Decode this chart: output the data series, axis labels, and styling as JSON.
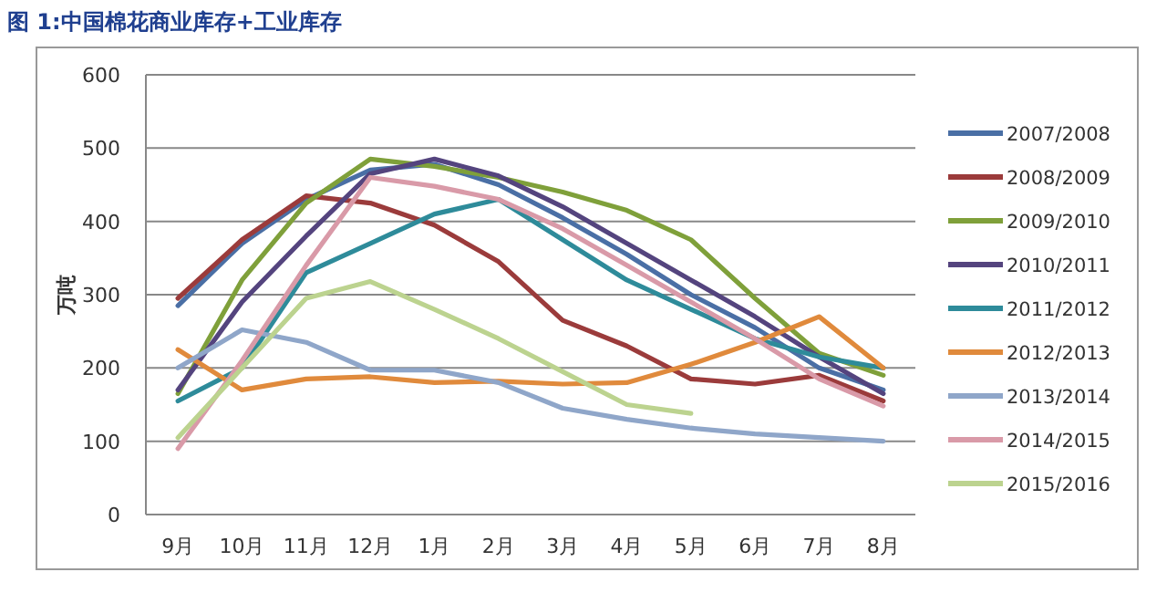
{
  "chart_data": {
    "type": "line",
    "title": "图 1:中国棉花商业库存+工业库存",
    "ylabel": "万吨",
    "categories": [
      "9月",
      "10月",
      "11月",
      "12月",
      "1月",
      "2月",
      "3月",
      "4月",
      "5月",
      "6月",
      "7月",
      "8月"
    ],
    "ylim": [
      0,
      600
    ],
    "yticks": [
      0,
      100,
      200,
      300,
      400,
      500,
      600
    ],
    "grid": "y",
    "legend": "right",
    "marker": "none",
    "line_style": "solid",
    "series": [
      {
        "name": "2007/2008",
        "color": "#4a6fa5",
        "values": [
          285,
          370,
          430,
          470,
          478,
          450,
          405,
          355,
          300,
          255,
          200,
          170
        ]
      },
      {
        "name": "2008/2009",
        "color": "#9b3b3b",
        "values": [
          295,
          375,
          435,
          425,
          395,
          345,
          265,
          230,
          185,
          178,
          190,
          155
        ]
      },
      {
        "name": "2009/2010",
        "color": "#7fa03a",
        "values": [
          165,
          320,
          425,
          485,
          475,
          460,
          440,
          415,
          375,
          295,
          220,
          190
        ]
      },
      {
        "name": "2010/2011",
        "color": "#54447e",
        "values": [
          170,
          290,
          380,
          465,
          485,
          462,
          420,
          370,
          320,
          270,
          215,
          165
        ]
      },
      {
        "name": "2011/2012",
        "color": "#2e8b9a",
        "values": [
          155,
          200,
          330,
          370,
          410,
          430,
          375,
          320,
          280,
          240,
          215,
          200
        ]
      },
      {
        "name": "2012/2013",
        "color": "#e08a3c",
        "values": [
          225,
          170,
          185,
          188,
          180,
          182,
          178,
          180,
          205,
          235,
          270,
          200
        ]
      },
      {
        "name": "2013/2014",
        "color": "#8fa6c9",
        "values": [
          200,
          252,
          235,
          197,
          197,
          180,
          145,
          130,
          118,
          110,
          105,
          100
        ]
      },
      {
        "name": "2014/2015",
        "color": "#d99aa8",
        "values": [
          90,
          210,
          340,
          460,
          448,
          430,
          390,
          340,
          290,
          240,
          185,
          148
        ]
      },
      {
        "name": "2015/2016",
        "color": "#bcd38f",
        "values": [
          105,
          200,
          295,
          318,
          280,
          240,
          195,
          150,
          138,
          null,
          null,
          null
        ]
      }
    ]
  }
}
